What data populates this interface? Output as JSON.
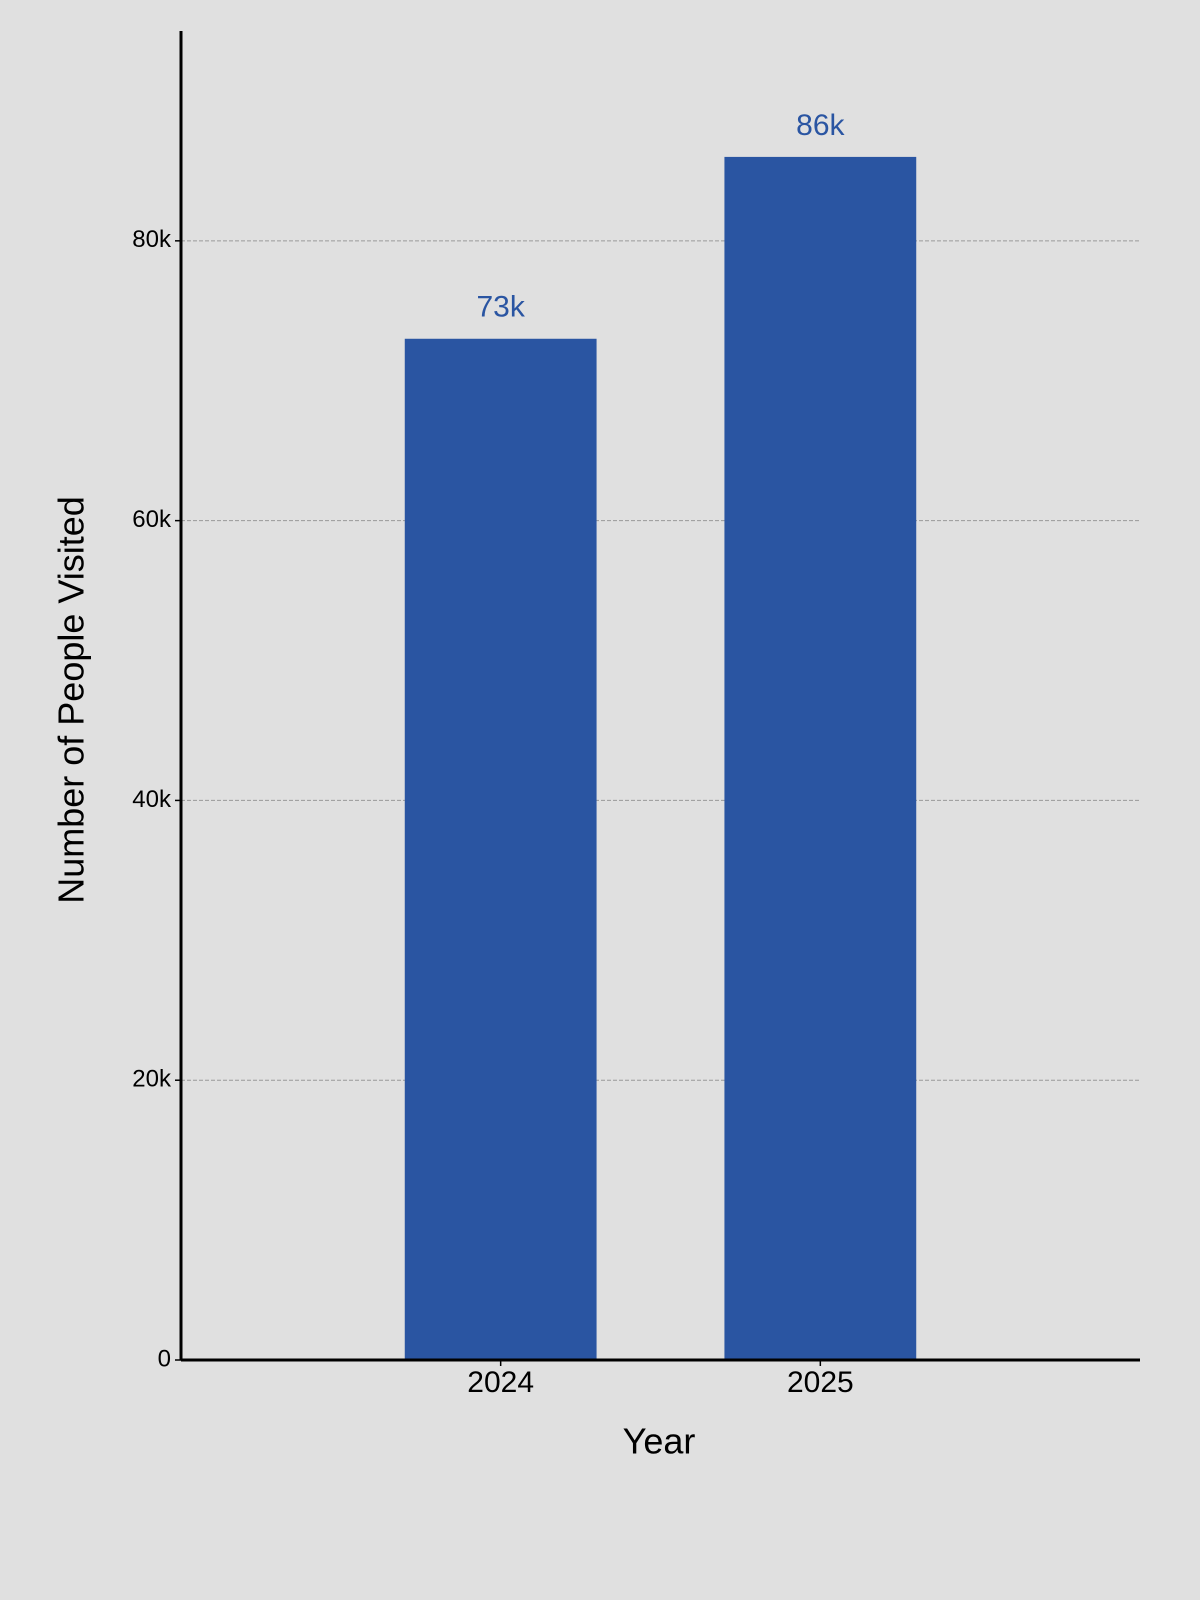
{
  "chart_data": {
    "type": "bar",
    "x_label": "Year",
    "y_label": "Number of People Visited",
    "categories": [
      "2024",
      "2025"
    ],
    "values": [
      73000,
      86000
    ],
    "value_labels": [
      "73k",
      "86k"
    ],
    "color": "#2a55a2",
    "ylim": [
      0,
      95000
    ],
    "yticks": [
      0,
      {
        "value": 20000,
        "label": "20k"
      },
      {
        "value": 40000,
        "label": "40k"
      },
      {
        "value": 60000,
        "label": "60k"
      },
      {
        "value": 80000,
        "label": "80k"
      }
    ],
    "grid": true
  }
}
